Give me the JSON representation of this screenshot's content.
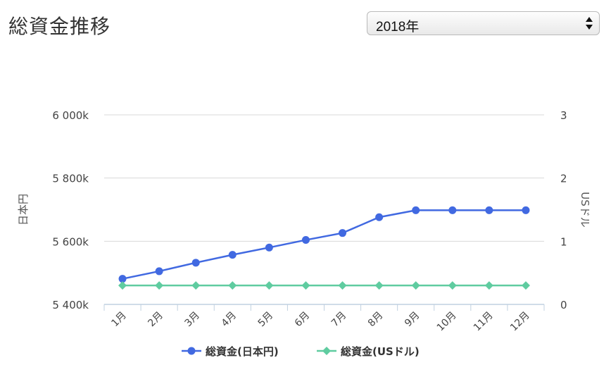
{
  "page": {
    "title": "総資金推移",
    "year_select": {
      "value": "2018年",
      "icon": "select-arrows-icon"
    }
  },
  "chart_data": {
    "type": "line",
    "categories": [
      "1月",
      "2月",
      "3月",
      "4月",
      "5月",
      "6月",
      "7月",
      "8月",
      "9月",
      "10月",
      "11月",
      "12月"
    ],
    "y_left": {
      "label": "日本円",
      "ticks": [
        "5 400k",
        "5 600k",
        "5 800k",
        "6 000k"
      ],
      "range": [
        5400000,
        6000000
      ]
    },
    "y_right": {
      "label": "USドル",
      "ticks": [
        "0",
        "1",
        "2",
        "3"
      ],
      "range": [
        0,
        3
      ]
    },
    "grid": true,
    "legend_position": "bottom",
    "series": [
      {
        "name": "総資金(日本円)",
        "axis": "left",
        "color": "#4169e1",
        "marker": "circle",
        "values": [
          5481000,
          5505000,
          5532000,
          5557000,
          5580000,
          5604000,
          5626000,
          5676000,
          5698000,
          5698000,
          5698000,
          5698000
        ]
      },
      {
        "name": "総資金(USドル)",
        "axis": "right",
        "color": "#5fcca0",
        "marker": "diamond",
        "values": [
          0.3,
          0.3,
          0.3,
          0.3,
          0.3,
          0.3,
          0.3,
          0.3,
          0.3,
          0.3,
          0.3,
          0.3
        ]
      }
    ]
  }
}
